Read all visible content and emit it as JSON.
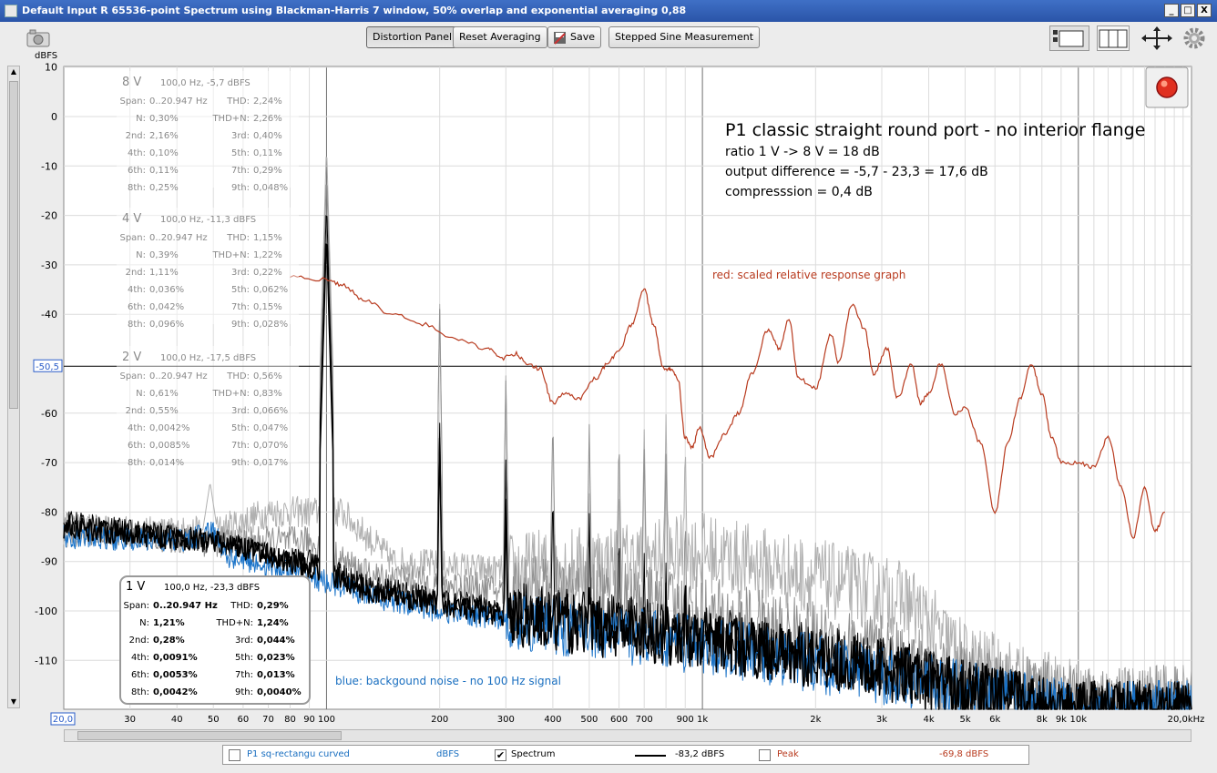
{
  "window": {
    "title": "Default Input R 65536-point Spectrum using Blackman-Harris 7 window, 50% overlap and exponential averaging 0,88",
    "min_label": "_",
    "max_label": "□",
    "close_label": "X"
  },
  "toolbar": {
    "distortion_label": "Distortion Panel",
    "reset_label": "Reset Averaging",
    "save_label": "Save",
    "stepped_label": "Stepped Sine Measurement"
  },
  "y_unit": "dBFS",
  "cursor_level": "-50,5",
  "x_start_label": "20,0",
  "x_end_label": "20,0kHz",
  "annotation": {
    "title": "P1 classic straight round port - no interior flange",
    "line1": "ratio 1 V -> 8 V = 18 dB",
    "line2": "output difference = -5,7 - 23,3 = 17,6 dB",
    "line3": "compresssion = 0,4 dB",
    "red_note": "red: scaled relative response graph",
    "blue_note": "blue: backgound noise - no 100 Hz signal"
  },
  "panels": [
    {
      "id": "8V",
      "level": "8 V",
      "head": "100,0 Hz, -5,7 dBFS",
      "rows": [
        [
          "Span:",
          "0..20.947 Hz",
          "THD:",
          "2,24%"
        ],
        [
          "N:",
          "0,30%",
          "THD+N:",
          "2,26%"
        ],
        [
          "2nd:",
          "2,16%",
          "3rd:",
          "0,40%"
        ],
        [
          "4th:",
          "0,10%",
          "5th:",
          "0,11%"
        ],
        [
          "6th:",
          "0,11%",
          "7th:",
          "0,29%"
        ],
        [
          "8th:",
          "0,25%",
          "9th:",
          "0,048%"
        ]
      ]
    },
    {
      "id": "4V",
      "level": "4 V",
      "head": "100,0 Hz, -11,3 dBFS",
      "rows": [
        [
          "Span:",
          "0..20.947 Hz",
          "THD:",
          "1,15%"
        ],
        [
          "N:",
          "0,39%",
          "THD+N:",
          "1,22%"
        ],
        [
          "2nd:",
          "1,11%",
          "3rd:",
          "0,22%"
        ],
        [
          "4th:",
          "0,036%",
          "5th:",
          "0,062%"
        ],
        [
          "6th:",
          "0,042%",
          "7th:",
          "0,15%"
        ],
        [
          "8th:",
          "0,096%",
          "9th:",
          "0,028%"
        ]
      ]
    },
    {
      "id": "2V",
      "level": "2 V",
      "head": "100,0 Hz, -17,5 dBFS",
      "rows": [
        [
          "Span:",
          "0..20.947 Hz",
          "THD:",
          "0,56%"
        ],
        [
          "N:",
          "0,61%",
          "THD+N:",
          "0,83%"
        ],
        [
          "2nd:",
          "0,55%",
          "3rd:",
          "0,066%"
        ],
        [
          "4th:",
          "0,0042%",
          "5th:",
          "0,047%"
        ],
        [
          "6th:",
          "0,0085%",
          "7th:",
          "0,070%"
        ],
        [
          "8th:",
          "0,014%",
          "9th:",
          "0,017%"
        ]
      ]
    },
    {
      "id": "1V",
      "level": "1 V",
      "head": "100,0 Hz, -23,3 dBFS",
      "rows": [
        [
          "Span:",
          "0..20.947 Hz",
          "THD:",
          "0,29%"
        ],
        [
          "N:",
          "1,21%",
          "THD+N:",
          "1,24%"
        ],
        [
          "2nd:",
          "0,28%",
          "3rd:",
          "0,044%"
        ],
        [
          "4th:",
          "0,0091%",
          "5th:",
          "0,023%"
        ],
        [
          "6th:",
          "0,0053%",
          "7th:",
          "0,013%"
        ],
        [
          "8th:",
          "0,0042%",
          "9th:",
          "0,0040%"
        ]
      ]
    }
  ],
  "legend": {
    "item1_label": "P1 sq-rectangu curved",
    "item1_unit": "dBFS",
    "item2_label": "Spectrum",
    "item2_value": "-83,2 dBFS",
    "item3_label": "Peak",
    "item3_value": "-69,8 dBFS"
  },
  "colors": {
    "red": "#b83a1e",
    "blue": "#1a73c8",
    "black": "#000000",
    "gray": "#909090",
    "lightgray": "#b0b0b0"
  },
  "chart_data": {
    "type": "line",
    "x_scale": "log",
    "xlim": [
      20,
      20000
    ],
    "ylim": [
      -120,
      10
    ],
    "y_ticks": [
      10,
      0,
      -10,
      -20,
      -30,
      -40,
      -60,
      -70,
      -80,
      -90,
      -100,
      -110
    ],
    "x_ticks": [
      {
        "v": 30,
        "l": "30"
      },
      {
        "v": 40,
        "l": "40"
      },
      {
        "v": 50,
        "l": "50"
      },
      {
        "v": 60,
        "l": "60"
      },
      {
        "v": 70,
        "l": "70"
      },
      {
        "v": 80,
        "l": "80"
      },
      {
        "v": 90,
        "l": "90"
      },
      {
        "v": 100,
        "l": "100"
      },
      {
        "v": 200,
        "l": "200"
      },
      {
        "v": 300,
        "l": "300"
      },
      {
        "v": 400,
        "l": "400"
      },
      {
        "v": 500,
        "l": "500"
      },
      {
        "v": 600,
        "l": "600"
      },
      {
        "v": 700,
        "l": "700"
      },
      {
        "v": 900,
        "l": "900"
      },
      {
        "v": 1000,
        "l": "1k"
      },
      {
        "v": 2000,
        "l": "2k"
      },
      {
        "v": 3000,
        "l": "3k"
      },
      {
        "v": 4000,
        "l": "4k"
      },
      {
        "v": 5000,
        "l": "5k"
      },
      {
        "v": 6000,
        "l": "6k"
      },
      {
        "v": 8000,
        "l": "8k"
      },
      {
        "v": 9000,
        "l": "9k"
      },
      {
        "v": 10000,
        "l": "10k"
      }
    ],
    "cursor_db": -50.5,
    "series": [
      {
        "name": "8 V",
        "color": "#b0b0b0",
        "fundamental": -5.7,
        "harmonics": [
          [
            200,
            -38
          ],
          [
            300,
            -52
          ],
          [
            400,
            -75
          ],
          [
            500,
            -76
          ],
          [
            600,
            -73
          ],
          [
            700,
            -63
          ],
          [
            800,
            -60
          ],
          [
            900,
            -65
          ]
        ],
        "noise": [
          [
            20,
            -84
          ],
          [
            50,
            -84
          ],
          [
            70,
            -80
          ],
          [
            90,
            -80
          ],
          [
            110,
            -80
          ],
          [
            150,
            -90
          ],
          [
            300,
            -92
          ],
          [
            600,
            -90
          ],
          [
            1000,
            -88
          ],
          [
            2500,
            -95
          ],
          [
            3500,
            -98
          ],
          [
            5000,
            -110
          ],
          [
            8000,
            -116
          ],
          [
            12000,
            -119
          ]
        ]
      },
      {
        "name": "4 V",
        "color": "#909090",
        "fundamental": -11.3,
        "harmonics": [
          [
            200,
            -39
          ],
          [
            300,
            -53
          ],
          [
            400,
            -60
          ],
          [
            500,
            -62
          ],
          [
            600,
            -64
          ],
          [
            700,
            -67
          ],
          [
            800,
            -68
          ],
          [
            900,
            -80
          ]
        ],
        "noise": [
          [
            20,
            -83
          ],
          [
            50,
            -86
          ],
          [
            90,
            -86
          ],
          [
            130,
            -93
          ],
          [
            300,
            -96
          ],
          [
            800,
            -99
          ],
          [
            1500,
            -104
          ],
          [
            3000,
            -109
          ],
          [
            6000,
            -116
          ],
          [
            10000,
            -119
          ]
        ]
      },
      {
        "name": "2 V",
        "color": "#000000",
        "fundamental": -17.5,
        "harmonics": [
          [
            200,
            -62
          ],
          [
            300,
            -69
          ],
          [
            400,
            -75
          ],
          [
            500,
            -80
          ],
          [
            600,
            -83
          ],
          [
            700,
            -88
          ],
          [
            800,
            -90
          ],
          [
            900,
            -95
          ]
        ],
        "noise": [
          [
            20,
            -82
          ],
          [
            50,
            -86
          ],
          [
            90,
            -90
          ],
          [
            130,
            -95
          ],
          [
            300,
            -100
          ],
          [
            800,
            -104
          ],
          [
            1500,
            -107
          ],
          [
            3000,
            -111
          ],
          [
            6000,
            -117
          ],
          [
            10000,
            -120
          ]
        ]
      },
      {
        "name": "1 V",
        "color": "#000000",
        "fundamental": -23.3,
        "harmonics": [
          [
            200,
            -65
          ],
          [
            300,
            -77
          ],
          [
            400,
            -96
          ],
          [
            500,
            -95
          ],
          [
            600,
            -95
          ],
          [
            700,
            -99
          ],
          [
            800,
            -94
          ],
          [
            900,
            -91
          ]
        ],
        "noise": [
          [
            20,
            -83
          ],
          [
            50,
            -86
          ],
          [
            90,
            -91
          ],
          [
            130,
            -96
          ],
          [
            300,
            -101
          ],
          [
            800,
            -105
          ],
          [
            1500,
            -108
          ],
          [
            3000,
            -112
          ],
          [
            6000,
            -117
          ],
          [
            10000,
            -120
          ]
        ]
      },
      {
        "name": "noise",
        "color": "#1a73c8",
        "noise": [
          [
            20,
            -85
          ],
          [
            40,
            -86
          ],
          [
            50,
            -84
          ],
          [
            55,
            -89
          ],
          [
            90,
            -93
          ],
          [
            130,
            -97
          ],
          [
            200,
            -100
          ],
          [
            400,
            -103
          ],
          [
            800,
            -106
          ],
          [
            1500,
            -109
          ],
          [
            3000,
            -113
          ],
          [
            6000,
            -117
          ],
          [
            10000,
            -120
          ]
        ]
      },
      {
        "name": "response",
        "color": "#b83a1e",
        "points": [
          [
            80,
            -32.5
          ],
          [
            100,
            -33
          ],
          [
            110,
            -34
          ],
          [
            125,
            -37
          ],
          [
            150,
            -40
          ],
          [
            180,
            -42
          ],
          [
            220,
            -45
          ],
          [
            270,
            -47
          ],
          [
            290,
            -49
          ],
          [
            320,
            -48
          ],
          [
            340,
            -50
          ],
          [
            370,
            -51
          ],
          [
            400,
            -58
          ],
          [
            430,
            -56
          ],
          [
            470,
            -57
          ],
          [
            520,
            -53
          ],
          [
            560,
            -50
          ],
          [
            600,
            -47
          ],
          [
            650,
            -42
          ],
          [
            700,
            -35
          ],
          [
            740,
            -42
          ],
          [
            790,
            -51
          ],
          [
            820,
            -51
          ],
          [
            860,
            -53
          ],
          [
            900,
            -65
          ],
          [
            940,
            -67
          ],
          [
            980,
            -63
          ],
          [
            1050,
            -69
          ],
          [
            1150,
            -64
          ],
          [
            1250,
            -60
          ],
          [
            1350,
            -52
          ],
          [
            1500,
            -43
          ],
          [
            1600,
            -47
          ],
          [
            1700,
            -41
          ],
          [
            1800,
            -53
          ],
          [
            2000,
            -55
          ],
          [
            2200,
            -44
          ],
          [
            2300,
            -50
          ],
          [
            2500,
            -38
          ],
          [
            2700,
            -43
          ],
          [
            2850,
            -52
          ],
          [
            3100,
            -47
          ],
          [
            3300,
            -57
          ],
          [
            3600,
            -50
          ],
          [
            3800,
            -58
          ],
          [
            4000,
            -56
          ],
          [
            4300,
            -50
          ],
          [
            4700,
            -60
          ],
          [
            5000,
            -59
          ],
          [
            5500,
            -66
          ],
          [
            6000,
            -80
          ],
          [
            6500,
            -66
          ],
          [
            7000,
            -57
          ],
          [
            7500,
            -50
          ],
          [
            8000,
            -56
          ],
          [
            8500,
            -65
          ],
          [
            9000,
            -70
          ],
          [
            10000,
            -70
          ],
          [
            11000,
            -71
          ],
          [
            12000,
            -65
          ],
          [
            13000,
            -75
          ],
          [
            14000,
            -85
          ],
          [
            15000,
            -75
          ],
          [
            16000,
            -84
          ],
          [
            17000,
            -80
          ]
        ]
      }
    ]
  }
}
